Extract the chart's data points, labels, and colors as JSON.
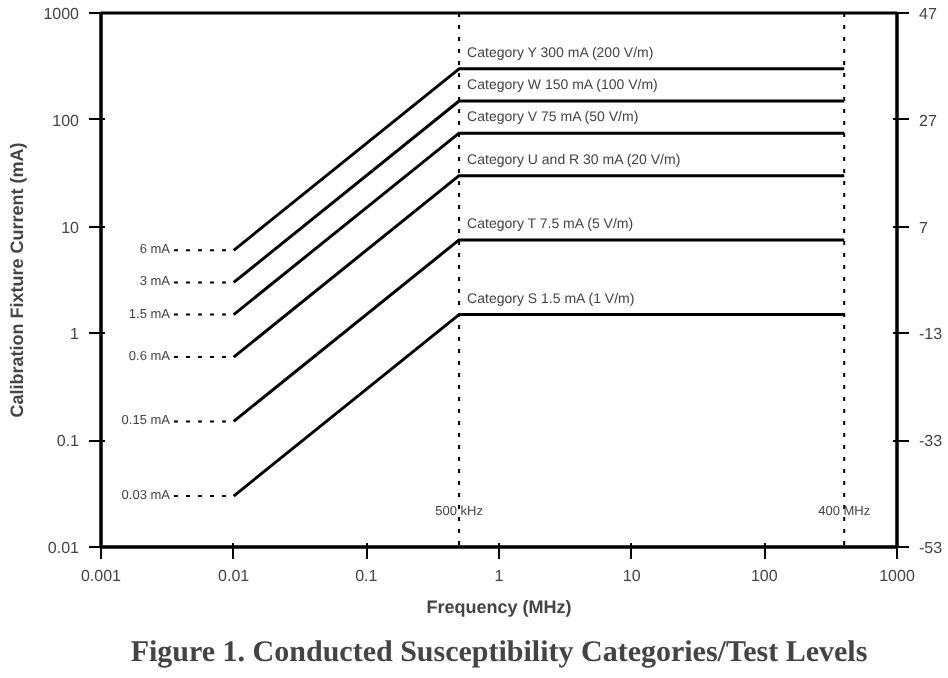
{
  "chart_data": {
    "type": "line",
    "title": "Figure 1. Conducted Susceptibility Categories/Test Levels",
    "xlabel": "Frequency (MHz)",
    "ylabel": "Calibration Fixture Current (mA)",
    "log": "xy",
    "xlim": [
      0.001,
      1000
    ],
    "ylim": [
      0.01,
      1000
    ],
    "xticks": [
      0.001,
      0.01,
      0.1,
      1,
      10,
      100,
      1000
    ],
    "yticks": [
      0.01,
      0.1,
      1,
      10,
      100,
      1000
    ],
    "y2lim": [
      -53,
      47
    ],
    "y2ticks": [
      47,
      27,
      7,
      -13,
      -33,
      -53
    ],
    "grid": false,
    "marker": "none",
    "line_style": "solid",
    "series": [
      {
        "name": "Category Y  300 mA  (200 V/m)",
        "color": "#000000",
        "x": [
          0.01,
          0.5,
          400
        ],
        "values": [
          6,
          300,
          300
        ]
      },
      {
        "name": "Category W  150 mA  (100 V/m)",
        "color": "#000000",
        "x": [
          0.01,
          0.5,
          400
        ],
        "values": [
          3,
          150,
          150
        ]
      },
      {
        "name": "Category V  75 mA  (50 V/m)",
        "color": "#000000",
        "x": [
          0.01,
          0.5,
          400
        ],
        "values": [
          1.5,
          75,
          75
        ]
      },
      {
        "name": "Category U and R  30 mA  (20 V/m)",
        "color": "#000000",
        "x": [
          0.01,
          0.5,
          400
        ],
        "values": [
          0.6,
          30,
          30
        ]
      },
      {
        "name": "Category T  7.5 mA  (5 V/m)",
        "color": "#000000",
        "x": [
          0.01,
          0.5,
          400
        ],
        "values": [
          0.15,
          7.5,
          7.5
        ]
      },
      {
        "name": "Category S  1.5 mA  (1 V/m)",
        "color": "#000000",
        "x": [
          0.01,
          0.5,
          400
        ],
        "values": [
          0.03,
          1.5,
          1.5
        ]
      }
    ],
    "ref_lines": [
      {
        "axis": "x",
        "value": 0.5,
        "label": "500 kHz",
        "line_style": "dotted"
      },
      {
        "axis": "x",
        "value": 400,
        "label": "400 MHz",
        "line_style": "dotted"
      }
    ],
    "annotations": [
      "6 mA",
      "3 mA",
      "1.5 mA",
      "0.6 mA",
      "0.15 mA",
      "0.03 mA"
    ]
  }
}
